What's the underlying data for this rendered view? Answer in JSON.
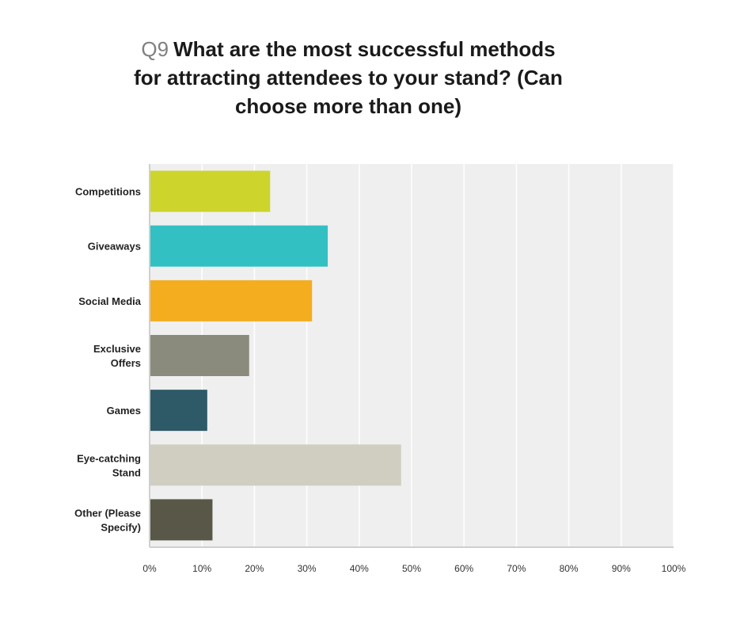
{
  "title": {
    "qnum": "Q9",
    "line1": "What are the most successful methods",
    "line2": "for attracting attendees to your stand? (Can",
    "line3": "choose more than one)"
  },
  "chart_data": {
    "type": "bar",
    "orientation": "horizontal",
    "title": "Q9 What are the most successful methods for attracting attendees to your stand? (Can choose more than one)",
    "categories": [
      [
        "Competitions"
      ],
      [
        "Giveaways"
      ],
      [
        "Social Media"
      ],
      [
        "Exclusive",
        "Offers"
      ],
      [
        "Games"
      ],
      [
        "Eye-catching",
        "Stand"
      ],
      [
        "Other (Please",
        "Specify)"
      ]
    ],
    "values": [
      23,
      34,
      31,
      19,
      11,
      48,
      12
    ],
    "colors": [
      "#cdd42c",
      "#33c0c2",
      "#f3ad1f",
      "#8a8b7d",
      "#2e5a68",
      "#cfcec1",
      "#595848"
    ],
    "xlim": [
      0,
      100
    ],
    "x_ticks": [
      "0%",
      "10%",
      "20%",
      "30%",
      "40%",
      "50%",
      "60%",
      "70%",
      "80%",
      "90%",
      "100%"
    ],
    "grid": true,
    "plot_background": "#efefef",
    "unit": "%"
  }
}
